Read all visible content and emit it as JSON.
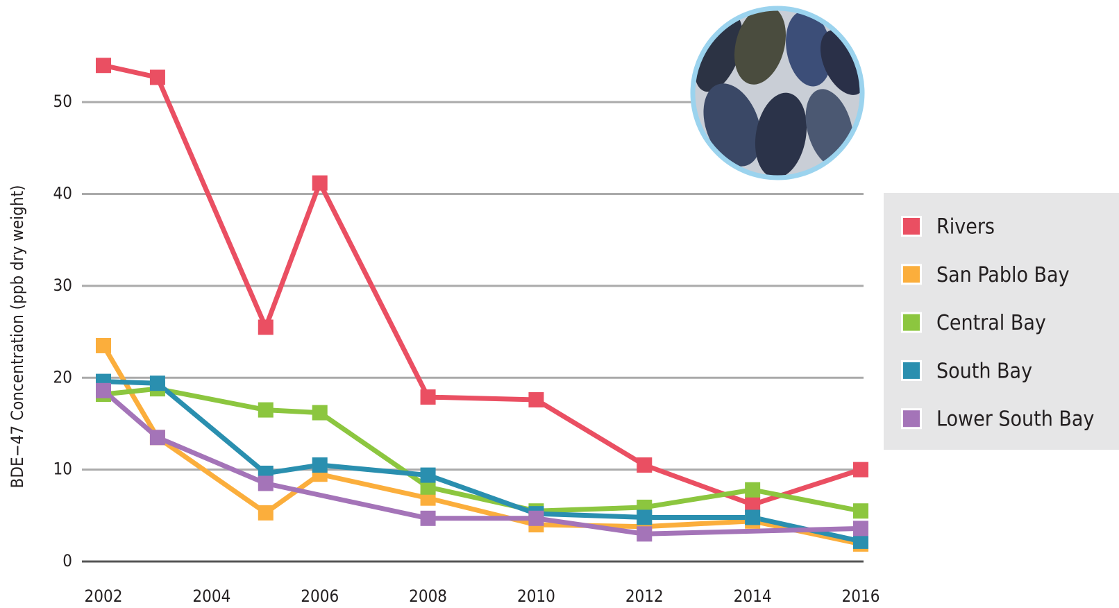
{
  "chart_data": {
    "type": "line",
    "y_label": "BDE−47 Concentration (ppb dry weight)",
    "x": [
      2002,
      2003,
      2005,
      2006,
      2008,
      2010,
      2012,
      2014,
      2016
    ],
    "xlim": [
      2002,
      2016
    ],
    "xticks": [
      2002,
      2004,
      2006,
      2008,
      2010,
      2012,
      2014,
      2016
    ],
    "ylim": [
      0,
      55
    ],
    "yticks": [
      0,
      10,
      20,
      30,
      40,
      50
    ],
    "grid": true,
    "series": [
      {
        "name": "Rivers",
        "color": "#ea4f62",
        "values": [
          54,
          52.7,
          25.5,
          41.2,
          17.9,
          17.6,
          10.5,
          6.2,
          10
        ]
      },
      {
        "name": "San Pablo Bay",
        "color": "#fbae3c",
        "values": [
          23.5,
          13.5,
          5.3,
          9.5,
          6.9,
          4.0,
          3.8,
          4.4,
          1.9
        ]
      },
      {
        "name": "Central Bay",
        "color": "#8cc63f",
        "values": [
          18.2,
          18.8,
          16.5,
          16.2,
          8.1,
          5.5,
          5.9,
          7.8,
          5.5
        ]
      },
      {
        "name": "South Bay",
        "color": "#2a8faf",
        "values": [
          19.6,
          19.4,
          9.6,
          10.5,
          9.4,
          5.2,
          4.8,
          4.8,
          2.2
        ]
      },
      {
        "name": "Lower South Bay",
        "color": "#a474b8",
        "x": [
          2002,
          2003,
          2005,
          2008,
          2010,
          2012,
          2016
        ],
        "values": [
          18.6,
          13.5,
          8.5,
          4.7,
          4.7,
          3.0,
          3.6
        ]
      }
    ]
  }
}
